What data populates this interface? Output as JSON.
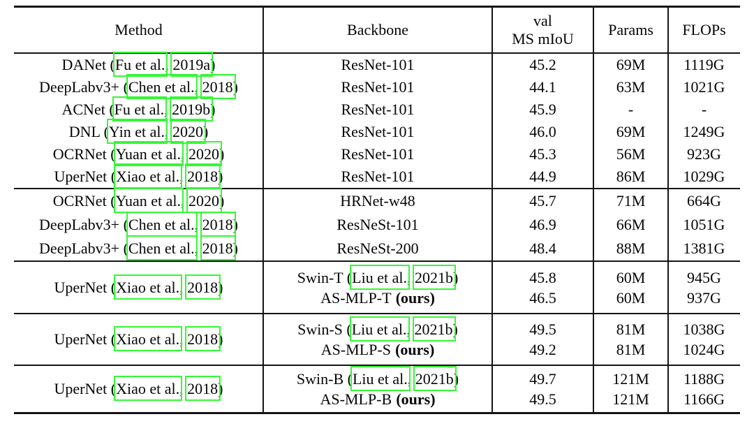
{
  "colors": {
    "bbox_green": "#35f735",
    "rule": "#141414",
    "text": "#060606"
  },
  "cite_sep": ", ",
  "header": {
    "method": "Method",
    "backbone": "Backbone",
    "miou_line1": "val",
    "miou_line2": "MS mIoU",
    "params": "Params",
    "flops": "FLOPs"
  },
  "sections": [
    {
      "rows": [
        {
          "pre": "DANet (",
          "au": "Fu et al.",
          "yr": "2019a",
          "post": ")",
          "bb": "ResNet-101",
          "miou": "45.2",
          "pr": "69M",
          "fl": "1119G"
        },
        {
          "pre": "DeepLabv3+ (",
          "au": "Chen et al.",
          "yr": "2018",
          "post": ")",
          "bb": "ResNet-101",
          "miou": "44.1",
          "pr": "63M",
          "fl": "1021G"
        },
        {
          "pre": "ACNet (",
          "au": "Fu et al.",
          "yr": "2019b",
          "post": ")",
          "bb": "ResNet-101",
          "miou": "45.9",
          "pr": "-",
          "fl": "-"
        },
        {
          "pre": "DNL (",
          "au": "Yin et al.",
          "yr": "2020",
          "post": ")",
          "bb": "ResNet-101",
          "miou": "46.0",
          "pr": "69M",
          "fl": "1249G"
        },
        {
          "pre": "OCRNet (",
          "au": "Yuan et al.",
          "yr": "2020",
          "post": ")",
          "bb": "ResNet-101",
          "miou": "45.3",
          "pr": "56M",
          "fl": "923G"
        },
        {
          "pre": "UperNet (",
          "au": "Xiao et al.",
          "yr": "2018",
          "post": ")",
          "bb": "ResNet-101",
          "miou": "44.9",
          "pr": "86M",
          "fl": "1029G"
        }
      ]
    },
    {
      "rows": [
        {
          "pre": "OCRNet (",
          "au": "Yuan et al.",
          "yr": "2020",
          "post": ")",
          "bb": "HRNet-w48",
          "miou": "45.7",
          "pr": "71M",
          "fl": "664G"
        },
        {
          "pre": "DeepLabv3+ (",
          "au": "Chen et al.",
          "yr": "2018",
          "post": ")",
          "bb": "ResNeSt-101",
          "miou": "46.9",
          "pr": "66M",
          "fl": "1051G"
        },
        {
          "pre": "DeepLabv3+ (",
          "au": "Chen et al.",
          "yr": "2018",
          "post": ")",
          "bb": "ResNeSt-200",
          "miou": "48.4",
          "pr": "88M",
          "fl": "1381G"
        }
      ]
    }
  ],
  "bottom_sections": [
    {
      "method": {
        "pre": "UperNet (",
        "au": "Xiao et al.",
        "yr": "2018",
        "post": ")"
      },
      "swin": {
        "pre": "Swin-T (",
        "au": "Liu et al.",
        "yr": "2021b",
        "post": ")",
        "miou": "45.8",
        "pr": "60M",
        "fl": "945G"
      },
      "ours": {
        "name": "AS-MLP-T",
        "tag": "(ours)",
        "miou": "46.5",
        "pr": "60M",
        "fl": "937G"
      }
    },
    {
      "method": {
        "pre": "UperNet (",
        "au": "Xiao et al.",
        "yr": "2018",
        "post": ")"
      },
      "swin": {
        "pre": "Swin-S (",
        "au": "Liu et al.",
        "yr": "2021b",
        "post": ")",
        "miou": "49.5",
        "pr": "81M",
        "fl": "1038G"
      },
      "ours": {
        "name": "AS-MLP-S",
        "tag": "(ours)",
        "miou": "49.2",
        "pr": "81M",
        "fl": "1024G"
      }
    },
    {
      "method": {
        "pre": "UperNet (",
        "au": "Xiao et al.",
        "yr": "2018",
        "post": ")"
      },
      "swin": {
        "pre": "Swin-B (",
        "au": "Liu et al.",
        "yr": "2021b",
        "post": ")",
        "miou": "49.7",
        "pr": "121M",
        "fl": "1188G"
      },
      "ours": {
        "name": "AS-MLP-B",
        "tag": "(ours)",
        "miou": "49.5",
        "pr": "121M",
        "fl": "1166G"
      }
    }
  ]
}
